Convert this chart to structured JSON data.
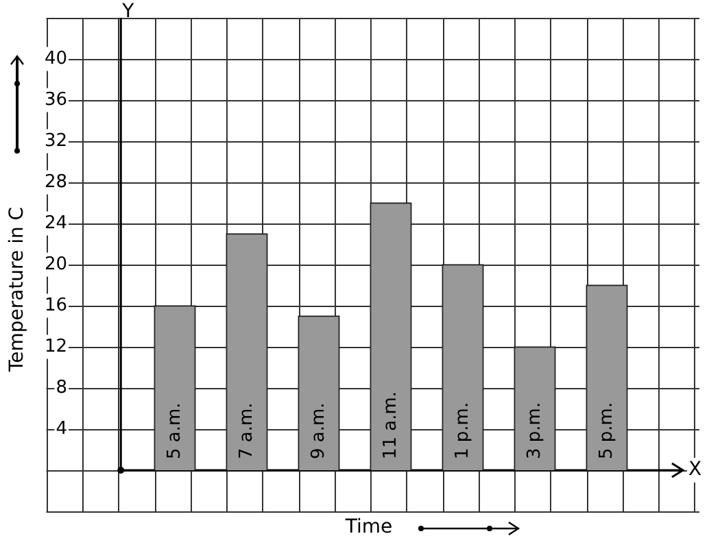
{
  "chart_data": {
    "type": "bar",
    "xlabel": "Time",
    "ylabel": "Temperature in C",
    "categories": [
      "5 a.m.",
      "7 a.m.",
      "9 a.m.",
      "11 a.m.",
      "1 p.m.",
      "3 p.m.",
      "5 p.m."
    ],
    "values": [
      16,
      23,
      15,
      26,
      20,
      12,
      18
    ],
    "color": "#999999",
    "ylim": [
      0,
      44
    ],
    "yticks": [
      4,
      8,
      12,
      16,
      20,
      24,
      28,
      32,
      36,
      40
    ],
    "grid": true,
    "legend": false,
    "annotations": [
      "Y",
      "X"
    ]
  }
}
